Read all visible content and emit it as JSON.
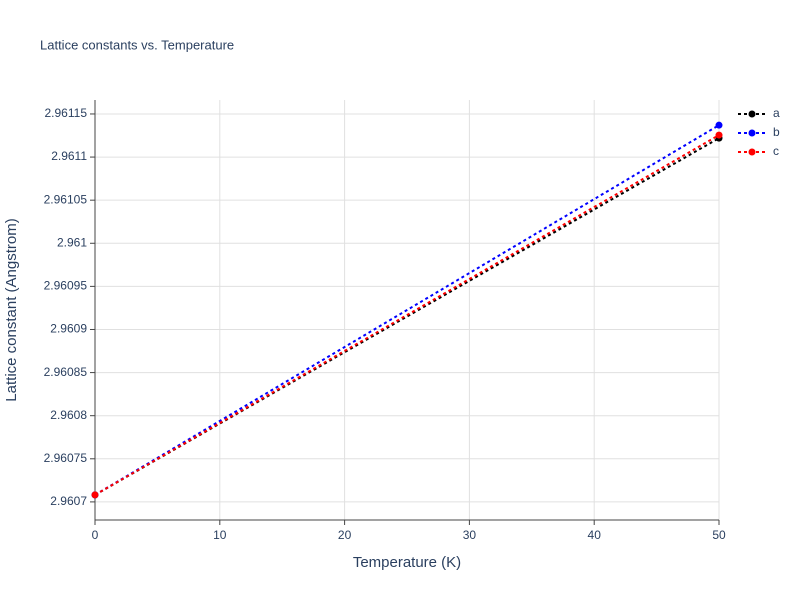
{
  "chart_data": {
    "type": "line",
    "title": "Lattice constants vs. Temperature",
    "x_label": "Temperature (K)",
    "y_label": "Lattice constant (Angstrom)",
    "x": [
      0,
      50
    ],
    "series": [
      {
        "name": "a",
        "color": "#000000",
        "values": [
          2.9607081,
          2.961122
        ]
      },
      {
        "name": "b",
        "color": "#0000ff",
        "values": [
          2.9607081,
          2.961137
        ]
      },
      {
        "name": "c",
        "color": "#ff0000",
        "values": [
          2.9607081,
          2.9611255
        ]
      }
    ],
    "xlim": [
      0,
      50
    ],
    "xticks": [
      0,
      10,
      20,
      30,
      40,
      50
    ],
    "ylim": [
      2.960679,
      2.9611662
    ],
    "yticks": [
      2.9607,
      2.96075,
      2.9608,
      2.96085,
      2.9609,
      2.96095,
      2.961,
      2.96105,
      2.9611,
      2.96115
    ],
    "grid": true,
    "legend": "right"
  }
}
